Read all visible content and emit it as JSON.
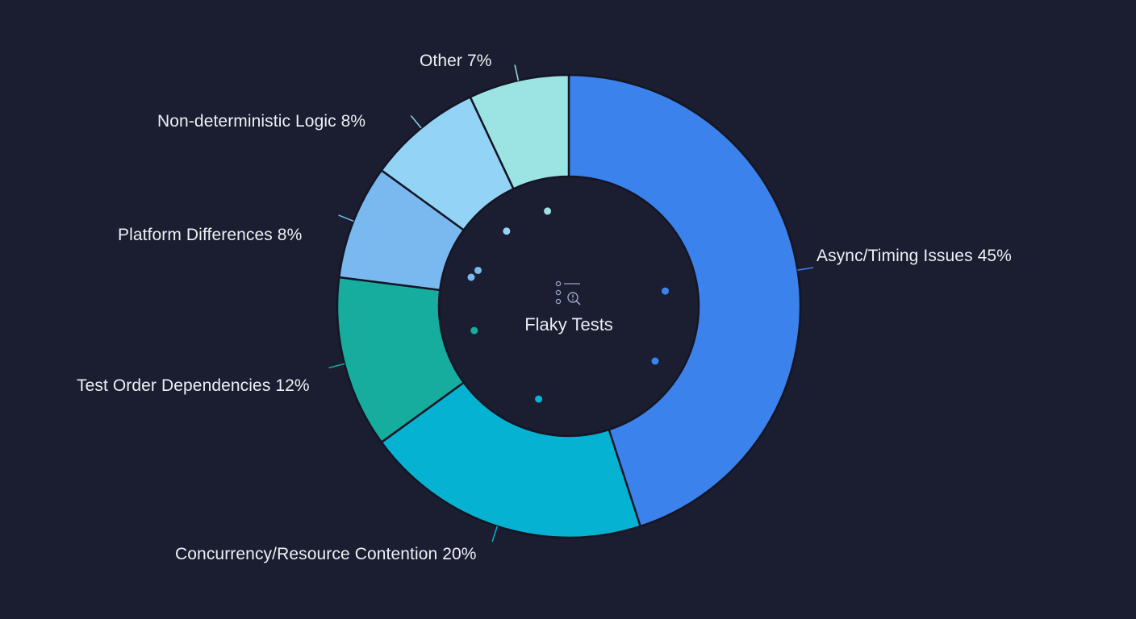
{
  "chart_data": {
    "type": "pie",
    "variant": "donut",
    "title": "Flaky Tests",
    "center_label": "Flaky Tests",
    "center_icon": "list-search-alert-icon",
    "start_angle_deg": 0,
    "direction": "clockwise",
    "categories": [
      "Async/Timing Issues",
      "Concurrency/Resource Contention",
      "Test Order Dependencies",
      "Platform Differences",
      "Non-deterministic Logic",
      "Other"
    ],
    "values": [
      45,
      20,
      12,
      8,
      8,
      7
    ],
    "unit": "%",
    "colors": [
      "#3b82ec",
      "#06b2d2",
      "#16ad9e",
      "#7ab8f0",
      "#93d3f6",
      "#9ce4e4"
    ],
    "labels": [
      "Async/Timing Issues 45%",
      "Concurrency/Resource Contention 20%",
      "Test Order Dependencies 12%",
      "Platform Differences 8%",
      "Non-deterministic Logic 8%",
      "Other 7%"
    ],
    "legend": "none (outside labels with leader lines)"
  },
  "theme": {
    "background": "#1b1d30",
    "text": "#eef0f5",
    "separator": "#141624"
  }
}
